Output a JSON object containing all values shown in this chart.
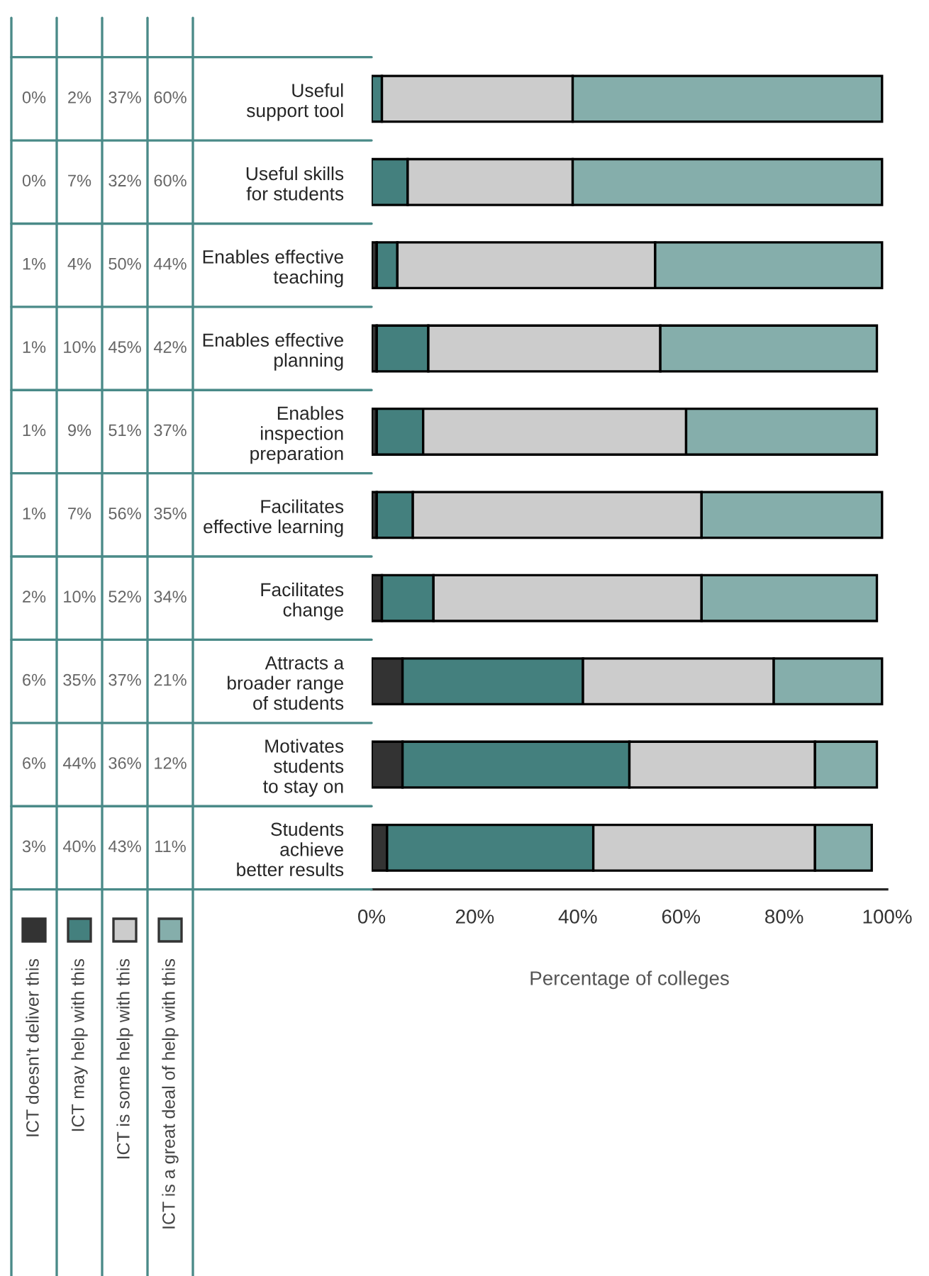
{
  "chart_data": {
    "type": "bar",
    "orientation": "horizontal",
    "stacked": true,
    "xlabel": "Percentage of colleges",
    "categories": [
      "Useful\nsupport tool",
      "Useful skills\nfor students",
      "Enables effective\nteaching",
      "Enables effective\nplanning",
      "Enables\ninspection\npreparation",
      "Facilitates\neffective learning",
      "Facilitates\nchange",
      "Attracts a\nbroader range\nof students",
      "Motivates\nstudents\nto stay on",
      "Students\nachieve\nbetter results"
    ],
    "series": [
      {
        "name": "ICT doesn't deliver this",
        "color": "#333333",
        "values": [
          0,
          0,
          1,
          1,
          1,
          1,
          2,
          6,
          6,
          3
        ],
        "value_labels": [
          "0%",
          "0%",
          "1%",
          "1%",
          "1%",
          "1%",
          "2%",
          "6%",
          "6%",
          "3%"
        ]
      },
      {
        "name": "ICT may help with this",
        "color": "#44807e",
        "values": [
          2,
          7,
          4,
          10,
          9,
          7,
          10,
          35,
          44,
          40
        ],
        "value_labels": [
          "2%",
          "7%",
          "4%",
          "10%",
          "9%",
          "7%",
          "10%",
          "35%",
          "44%",
          "40%"
        ]
      },
      {
        "name": "ICT is some help with this",
        "color": "#cccccc",
        "values": [
          37,
          32,
          50,
          45,
          51,
          56,
          52,
          37,
          36,
          43
        ],
        "value_labels": [
          "37%",
          "32%",
          "50%",
          "45%",
          "51%",
          "56%",
          "52%",
          "37%",
          "36%",
          "43%"
        ]
      },
      {
        "name": "ICT is a great deal of help with this",
        "color": "#85aeab",
        "values": [
          60,
          60,
          44,
          42,
          37,
          35,
          34,
          21,
          12,
          11
        ],
        "value_labels": [
          "60%",
          "60%",
          "44%",
          "42%",
          "37%",
          "35%",
          "34%",
          "21%",
          "12%",
          "11%"
        ]
      }
    ],
    "xlim": [
      0,
      100
    ],
    "xticks": [
      {
        "value": 0,
        "label": "0%"
      },
      {
        "value": 20,
        "label": "20%"
      },
      {
        "value": 40,
        "label": "40%"
      },
      {
        "value": 60,
        "label": "60%"
      },
      {
        "value": 80,
        "label": "80%"
      },
      {
        "value": 100,
        "label": "100%"
      }
    ],
    "grid": false,
    "legend": "bottom left"
  }
}
